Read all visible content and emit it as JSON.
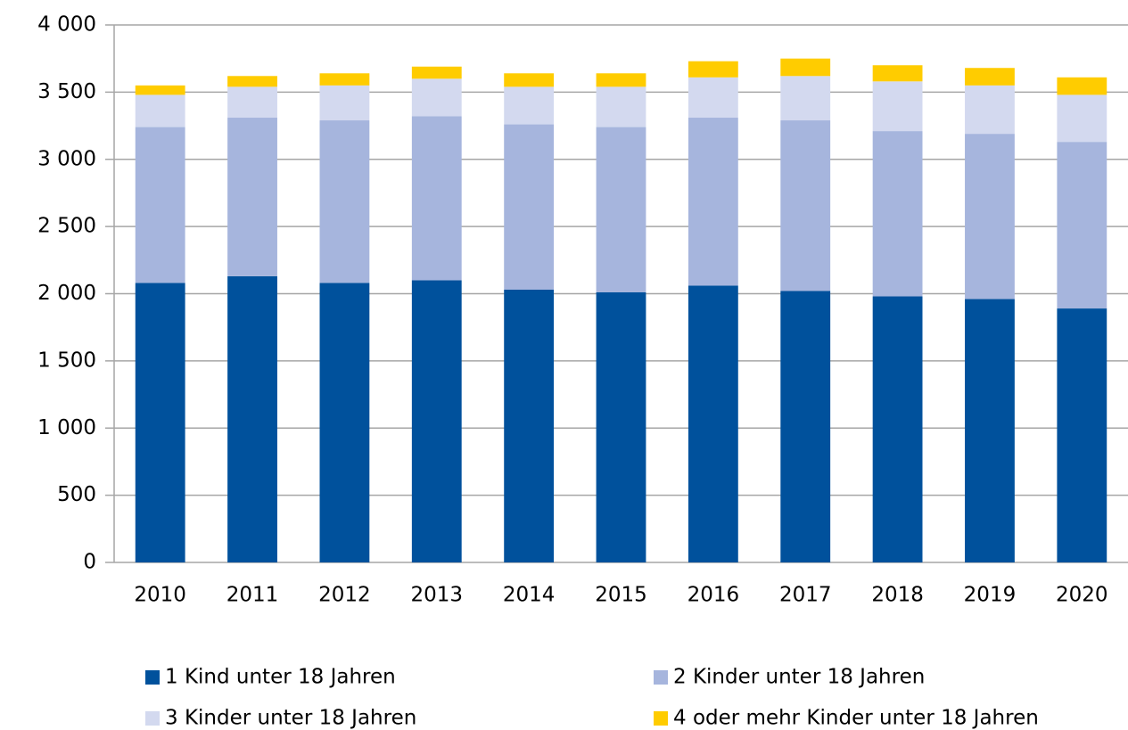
{
  "chart_data": {
    "type": "stacked_bar",
    "categories": [
      "2010",
      "2011",
      "2012",
      "2013",
      "2014",
      "2015",
      "2016",
      "2017",
      "2018",
      "2019",
      "2020"
    ],
    "series": [
      {
        "name": "1 Kind unter 18 Jahren",
        "color": "#00519c",
        "values": [
          2080,
          2130,
          2080,
          2100,
          2030,
          2010,
          2060,
          2020,
          1980,
          1960,
          1890
        ]
      },
      {
        "name": "2 Kinder unter 18 Jahren",
        "color": "#a6b5dd",
        "values": [
          1160,
          1180,
          1210,
          1220,
          1230,
          1230,
          1250,
          1270,
          1230,
          1230,
          1240
        ]
      },
      {
        "name": "3 Kinder unter 18 Jahren",
        "color": "#d3d9ef",
        "values": [
          240,
          230,
          260,
          280,
          280,
          300,
          300,
          330,
          370,
          360,
          350
        ]
      },
      {
        "name": "4 oder mehr Kinder unter 18 Jahren",
        "color": "#ffcc00",
        "values": [
          70,
          80,
          90,
          90,
          100,
          100,
          120,
          130,
          120,
          130,
          130
        ]
      }
    ],
    "ylim": [
      0,
      4000
    ],
    "yticks": [
      0,
      500,
      {
        "value": 1000,
        "label": "1 000"
      },
      {
        "value": 1500,
        "label": "1 500"
      },
      {
        "value": 2000,
        "label": "2 000"
      },
      {
        "value": 2500,
        "label": "2 500"
      },
      {
        "value": 3000,
        "label": "3 000"
      },
      {
        "value": 3500,
        "label": "3 500"
      },
      {
        "value": 4000,
        "label": "4 000"
      }
    ],
    "grid": true
  }
}
